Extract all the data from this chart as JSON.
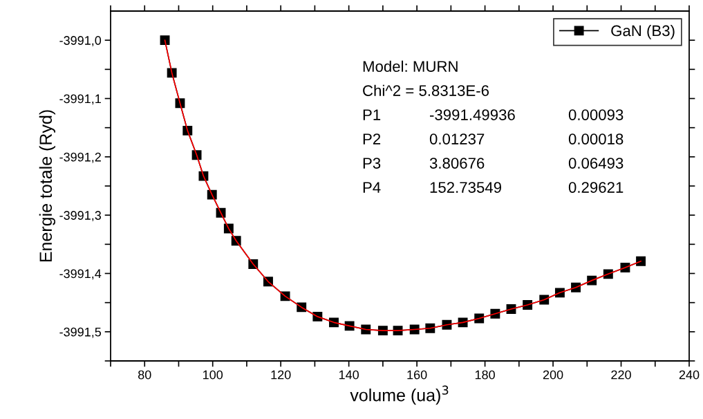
{
  "chart_data": {
    "type": "line",
    "xlabel": "volume (ua)$^{3}$",
    "ylabel": "Energie totale (Ryd)",
    "xlim": [
      70,
      240
    ],
    "ylim": [
      -3991.55,
      -3990.95
    ],
    "xticks": [
      {
        "value": 70,
        "label": null
      },
      80,
      {
        "value": 90,
        "label": null
      },
      100,
      {
        "value": 110,
        "label": null
      },
      120,
      {
        "value": 130,
        "label": null
      },
      140,
      {
        "value": 150,
        "label": null
      },
      160,
      {
        "value": 170,
        "label": null
      },
      180,
      {
        "value": 190,
        "label": null
      },
      200,
      {
        "value": 210,
        "label": null
      },
      220,
      {
        "value": 230,
        "label": null
      },
      240
    ],
    "yticks": [
      {
        "value": -3991.55,
        "label": null
      },
      {
        "value": -3991.5,
        "label": "-3991,5"
      },
      {
        "value": -3991.45,
        "label": null
      },
      {
        "value": -3991.4,
        "label": "-3991,4"
      },
      {
        "value": -3991.35,
        "label": null
      },
      {
        "value": -3991.3,
        "label": "-3991,3"
      },
      {
        "value": -3991.25,
        "label": null
      },
      {
        "value": -3991.2,
        "label": "-3991,2"
      },
      {
        "value": -3991.15,
        "label": null
      },
      {
        "value": -3991.1,
        "label": "-3991,1"
      },
      {
        "value": -3991.05,
        "label": null
      },
      {
        "value": -3991.0,
        "label": "-3991,0"
      }
    ],
    "x": [
      85.95,
      88.0,
      90.4,
      92.6,
      95.3,
      97.3,
      99.8,
      102.4,
      104.7,
      106.9,
      111.9,
      116.3,
      121.3,
      126.1,
      130.8,
      135.6,
      140.2,
      145.0,
      150.0,
      154.4,
      159.3,
      163.9,
      168.8,
      173.5,
      178.3,
      183.0,
      187.7,
      192.5,
      197.4,
      202.0,
      206.7,
      211.4,
      216.2,
      221.2,
      225.8
    ],
    "series": [
      {
        "name": "GaN (B3)",
        "color": "#000000",
        "marker": "square",
        "line_style": "solid",
        "values": [
          -3991.0,
          -3991.056,
          -3991.108,
          -3991.155,
          -3991.197,
          -3991.233,
          -3991.265,
          -3991.296,
          -3991.323,
          -3991.344,
          -3991.384,
          -3991.414,
          -3991.439,
          -3991.458,
          -3991.474,
          -3991.484,
          -3991.49,
          -3991.496,
          -3991.498,
          -3991.498,
          -3991.496,
          -3991.494,
          -3991.488,
          -3991.484,
          -3991.477,
          -3991.469,
          -3991.461,
          -3991.454,
          -3991.445,
          -3991.433,
          -3991.424,
          -3991.412,
          -3991.401,
          -3991.39,
          -3991.379
        ]
      },
      {
        "type": "line",
        "color": "#ff0000",
        "marker": "none",
        "line_style": "solid",
        "x": [
          85.95,
          88.0,
          90.4,
          92.6,
          95.3,
          97.3,
          99.8,
          102.4,
          104.7,
          106.9,
          111.9,
          116.3,
          121.3,
          126.1,
          130.8,
          135.6,
          140.2,
          145.0,
          150.0,
          154.4,
          159.3,
          163.9,
          168.8,
          173.5,
          178.3,
          183.0,
          187.7,
          192.5,
          197.4,
          202.0,
          206.7,
          211.4,
          216.2,
          221.2,
          225.8
        ],
        "values": [
          -3991.0,
          -3991.056,
          -3991.108,
          -3991.155,
          -3991.197,
          -3991.233,
          -3991.265,
          -3991.296,
          -3991.323,
          -3991.344,
          -3991.384,
          -3991.414,
          -3991.439,
          -3991.458,
          -3991.474,
          -3991.484,
          -3991.49,
          -3991.496,
          -3991.498,
          -3991.498,
          -3991.496,
          -3991.494,
          -3991.488,
          -3991.484,
          -3991.477,
          -3991.469,
          -3991.461,
          -3991.454,
          -3991.445,
          -3991.433,
          -3991.424,
          -3991.412,
          -3991.401,
          -3991.39,
          -3991.379
        ]
      }
    ],
    "annotations": [
      "Model: MURN",
      "Chi^2 = 5.8313E-6",
      "P1",
      "-3991.49936",
      "0.00093",
      "P2",
      "0.01237",
      "0.00018",
      "P3",
      "3.80676",
      "0.06493",
      "P4",
      "152.73549",
      "0.29621"
    ],
    "legend": "top right",
    "grid": false
  }
}
